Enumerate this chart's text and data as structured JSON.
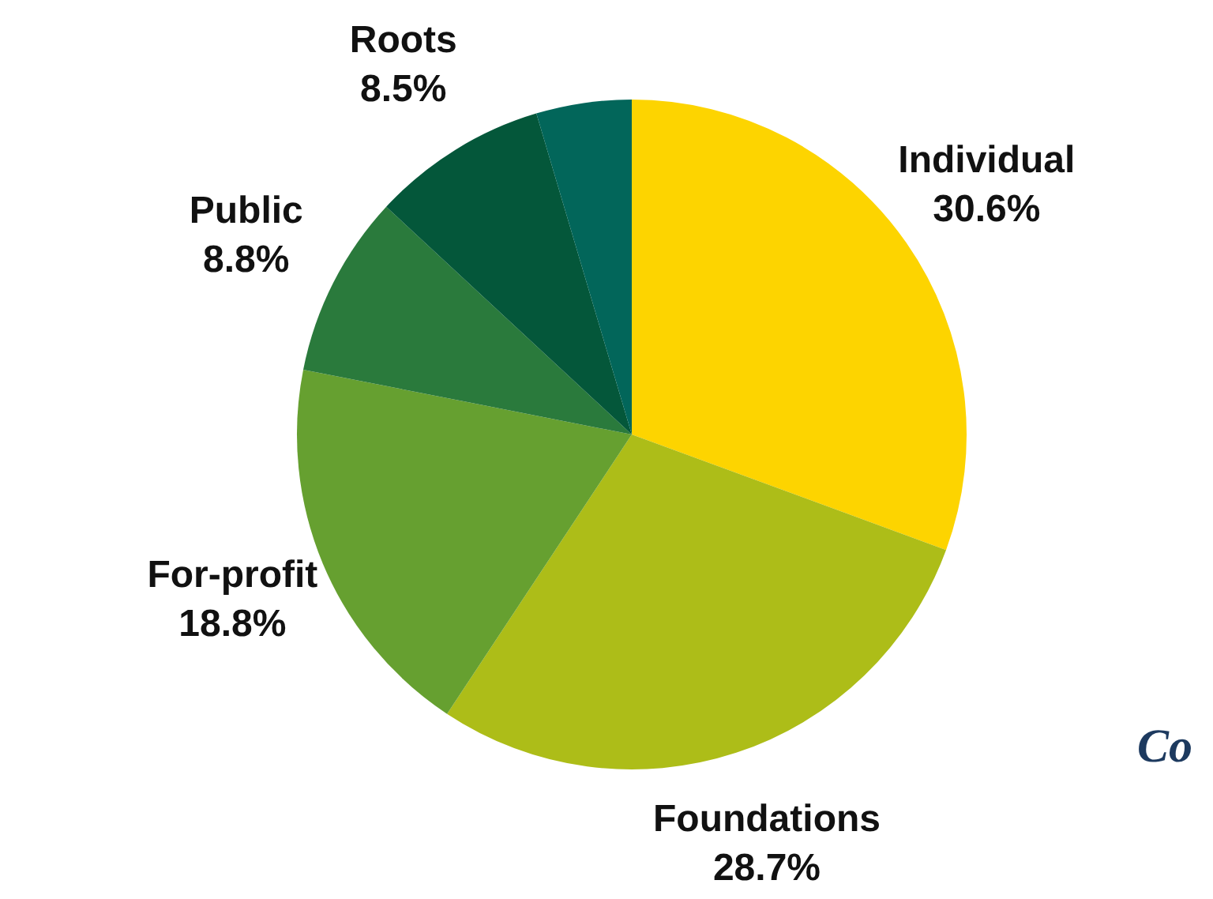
{
  "chart_data": {
    "type": "pie",
    "categories": [
      "Individual",
      "Foundations",
      "For-profit",
      "Public",
      "Roots",
      null
    ],
    "values": [
      30.6,
      28.7,
      18.8,
      8.8,
      8.5,
      4.6
    ],
    "value_labels": [
      "30.6%",
      "28.7%",
      "18.8%",
      "8.8%",
      "8.5%",
      null
    ],
    "colors": [
      "#fdd400",
      "#adbd18",
      "#66a030",
      "#2a7a3c",
      "#04573a",
      "#02665a"
    ],
    "annotations": [
      "Co"
    ],
    "legend": false
  }
}
